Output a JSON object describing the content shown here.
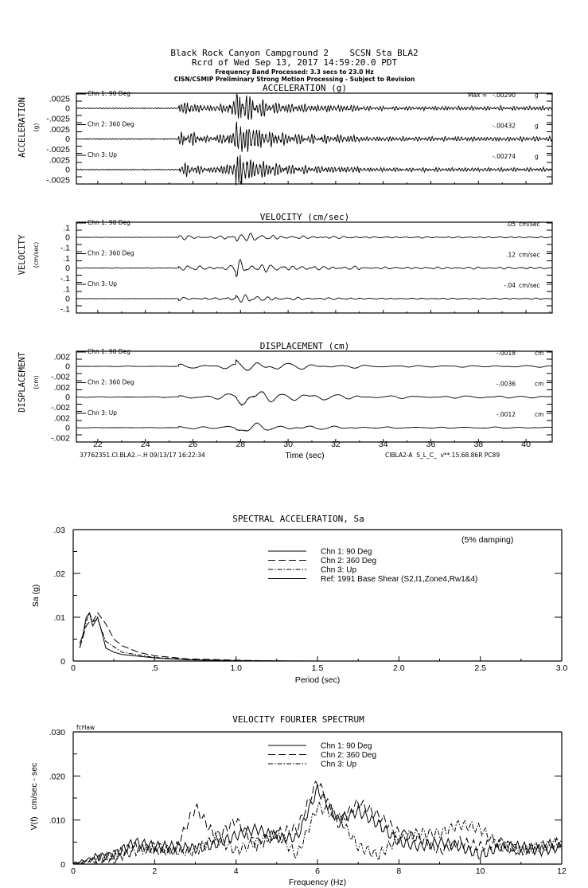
{
  "header": {
    "station_line": "Black Rock Canyon Campground 2    SCSN Sta BLA2",
    "record_line": "Rcrd of Wed Sep 13, 2017 14:59:20.0 PDT",
    "band_line": "Frequency Band Processed: 3.3 secs to 23.0 Hz",
    "processing_line": "CISN/CSMIP Preliminary Strong Motion Processing - Subject to Revision"
  },
  "seismogram": {
    "time_axis": {
      "label": "Time (sec)",
      "ticks": [
        "22",
        "24",
        "26",
        "28",
        "30",
        "32",
        "34",
        "36",
        "38",
        "40"
      ],
      "range": [
        21.1,
        41.1
      ]
    },
    "footer_left": "37762351.CI.BLA2.--.H 09/13/17 16:22:34",
    "footer_right": "CIBLA2-A  S_L_C_  v**.15.68.86R PC89",
    "panels": [
      {
        "title": "ACCELERATION (g)",
        "ylabel": "ACCELERATION",
        "yunit": "(g)",
        "scale_labels": [
          ".0025",
          "0",
          "-.0025"
        ],
        "unit": "g",
        "channels": [
          {
            "label": "Chn 1: 90 Deg",
            "max_prefix": "Max =",
            "max": "-.00290"
          },
          {
            "label": "Chn 2: 360 Deg",
            "max": "-.00432"
          },
          {
            "label": "Chn 3: Up",
            "max": "-.00274"
          }
        ]
      },
      {
        "title": "VELOCITY (cm/sec)",
        "ylabel": "VELOCITY",
        "yunit": "(cm/sec)",
        "scale_labels": [
          ".1",
          "0",
          "-.1"
        ],
        "unit": "cm/sec",
        "channels": [
          {
            "label": "Chn 1: 90 Deg",
            "max": ".05"
          },
          {
            "label": "Chn 2: 360 Deg",
            "max": ".12"
          },
          {
            "label": "Chn 3: Up",
            "max": "-.04"
          }
        ]
      },
      {
        "title": "DISPLACEMENT (cm)",
        "ylabel": "DISPLACEMENT",
        "yunit": "(cm)",
        "scale_labels": [
          ".002",
          "0",
          "-.002"
        ],
        "unit": "cm",
        "channels": [
          {
            "label": "Chn 1: 90 Deg",
            "max": "-.0018"
          },
          {
            "label": "Chn 2: 360 Deg",
            "max": "-.0036"
          },
          {
            "label": "Chn 3: Up",
            "max": "-.0012"
          }
        ]
      }
    ]
  },
  "chart_data": [
    {
      "type": "line",
      "title": "SPECTRAL ACCELERATION, Sa",
      "xlabel": "Period (sec)",
      "ylabel": "Sa (g)",
      "annotation": "(5% damping)",
      "xlim": [
        0,
        3.0
      ],
      "ylim": [
        0,
        0.03
      ],
      "xticks": [
        "0",
        ".5",
        "1.0",
        "1.5",
        "2.0",
        "2.5",
        "3.0"
      ],
      "yticks": [
        ".03",
        ".02",
        ".01",
        "0"
      ],
      "grid": false,
      "legend_position": "top-right",
      "series": [
        {
          "name": "Chn 1: 90 Deg",
          "style": "solid",
          "x": [
            0.04,
            0.06,
            0.08,
            0.1,
            0.12,
            0.15,
            0.18,
            0.2,
            0.25,
            0.3,
            0.5,
            0.7,
            1.0,
            1.5,
            3.0
          ],
          "y": [
            0.004,
            0.006,
            0.01,
            0.011,
            0.008,
            0.01,
            0.006,
            0.003,
            0.002,
            0.0015,
            0.0007,
            0.0003,
            0.0001,
            0,
            0
          ]
        },
        {
          "name": "Chn 2: 360 Deg",
          "style": "dashed",
          "x": [
            0.04,
            0.08,
            0.1,
            0.12,
            0.15,
            0.2,
            0.25,
            0.3,
            0.4,
            0.5,
            0.7,
            1.0,
            1.3,
            3.0
          ],
          "y": [
            0.003,
            0.008,
            0.009,
            0.009,
            0.011,
            0.0085,
            0.005,
            0.0035,
            0.002,
            0.0012,
            0.0005,
            0.0002,
            0,
            0
          ]
        },
        {
          "name": "Chn 3: Up",
          "style": "dashdot",
          "x": [
            0.04,
            0.08,
            0.1,
            0.12,
            0.15,
            0.2,
            0.3,
            0.5,
            0.8,
            1.0,
            3.0
          ],
          "y": [
            0.003,
            0.009,
            0.011,
            0.009,
            0.0095,
            0.0045,
            0.002,
            0.0008,
            0.0002,
            0,
            0
          ]
        },
        {
          "name": "Ref: 1991 Base Shear (S2,I1,Zone4,Rw1&4)",
          "style": "solid",
          "x": [],
          "y": []
        }
      ]
    },
    {
      "type": "line",
      "title": "VELOCITY FOURIER SPECTRUM",
      "xlabel": "Frequency (Hz)",
      "ylabel": "V(f)   cm/sec - sec",
      "corner_label": "fcHaw",
      "xlim": [
        0,
        12
      ],
      "ylim": [
        0,
        0.03
      ],
      "xticks": [
        "0",
        "2",
        "4",
        "6",
        "8",
        "10",
        "12"
      ],
      "yticks": [
        ".030",
        ".020",
        ".010",
        "0"
      ],
      "grid": false,
      "legend_position": "top-center",
      "x": [
        0,
        0.5,
        1,
        1.5,
        2,
        2.5,
        3,
        3.5,
        4,
        4.5,
        5,
        5.5,
        6,
        6.5,
        7,
        7.5,
        8,
        8.5,
        9,
        9.5,
        10,
        10.5,
        11,
        11.5,
        12
      ],
      "series": [
        {
          "name": "Chn 1: 90 Deg",
          "style": "solid",
          "y": [
            0,
            0.0015,
            0.002,
            0.005,
            0.004,
            0.004,
            0.0035,
            0.0045,
            0.0065,
            0.008,
            0.006,
            0.006,
            0.017,
            0.01,
            0.012,
            0.009,
            0.005,
            0.004,
            0.005,
            0.004,
            0.002,
            0.004,
            0.004,
            0.003,
            0.004
          ]
        },
        {
          "name": "Chn 2: 360 Deg",
          "style": "dashed",
          "y": [
            0,
            0.001,
            0.002,
            0.004,
            0.003,
            0.003,
            0.013,
            0.006,
            0.01,
            0.004,
            0.007,
            0.008,
            0.019,
            0.009,
            0.014,
            0.011,
            0.007,
            0.006,
            0.003,
            0.005,
            0.004,
            0.005,
            0.003,
            0.004,
            0.005
          ]
        },
        {
          "name": "Chn 3: Up",
          "style": "dashdot",
          "y": [
            0,
            0.001,
            0.0015,
            0.003,
            0.004,
            0.003,
            0.003,
            0.006,
            0.003,
            0.005,
            0.007,
            0.002,
            0.013,
            0.011,
            0.004,
            0.002,
            0.006,
            0.007,
            0.007,
            0.009,
            0.008,
            0.004,
            0.003,
            0.004,
            0.005
          ]
        }
      ]
    }
  ]
}
